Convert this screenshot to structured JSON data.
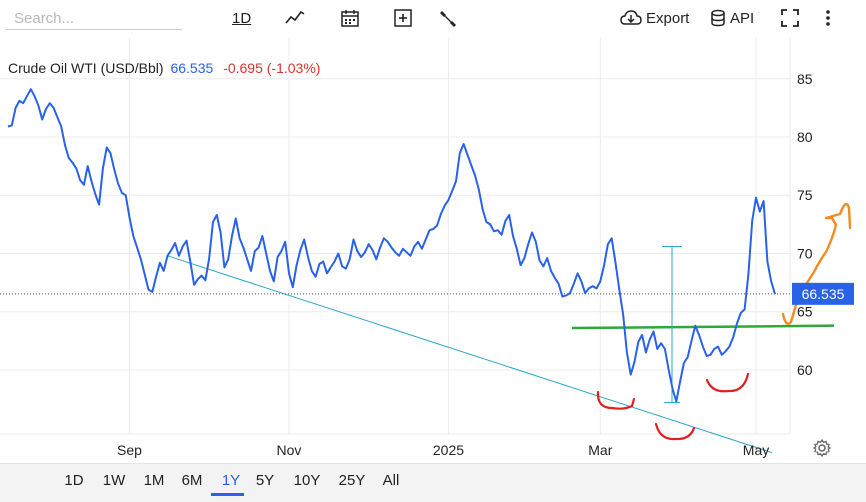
{
  "toolbar": {
    "search_placeholder": "Search...",
    "interval_label": "1D",
    "line_icon": "line-chart-icon",
    "calendar_icon": "calendar-icon",
    "add_icon": "plus-box-icon",
    "indicator_icon": "wrench-icon",
    "export_label": "Export",
    "api_label": "API",
    "fullscreen_icon": "expand-icon",
    "more_icon": "more-vertical-icon"
  },
  "header": {
    "symbol": "Crude Oil WTI (USD/Bbl)",
    "price": "66.535",
    "change": "-0.695 (-1.03%)"
  },
  "chart_data": {
    "type": "line",
    "title": "Crude Oil WTI (USD/Bbl)",
    "xlabel": "",
    "ylabel": "",
    "ylim": [
      54.5,
      88.5
    ],
    "y_ticks": [
      60,
      65,
      70,
      75,
      80,
      85
    ],
    "x_ticks": [
      "Sep",
      "Nov",
      "2025",
      "Mar",
      "May"
    ],
    "x_tick_index": [
      32,
      74,
      116,
      156,
      197
    ],
    "last_value": 66.535,
    "last_label": "66.535",
    "grid": true,
    "series": [
      {
        "color": "#2962e8",
        "values": [
          80.9,
          81.0,
          82.5,
          83.1,
          82.9,
          83.5,
          84.1,
          83.5,
          82.7,
          81.5,
          82.4,
          82.9,
          82.5,
          81.7,
          80.9,
          79.3,
          78.2,
          77.8,
          77.3,
          76.3,
          75.9,
          77.5,
          76.2,
          75.1,
          74.2,
          77.3,
          79.1,
          78.6,
          77.2,
          76.0,
          75.2,
          75.0,
          73.1,
          71.5,
          70.5,
          69.5,
          68.2,
          66.9,
          66.7,
          68.0,
          69.2,
          68.5,
          69.8,
          70.3,
          70.9,
          69.8,
          70.6,
          71.1,
          69.3,
          67.3,
          67.8,
          68.1,
          67.7,
          69.6,
          72.7,
          73.3,
          71.8,
          68.8,
          69.5,
          71.5,
          73.0,
          71.3,
          70.5,
          69.5,
          68.5,
          70.2,
          70.5,
          71.5,
          70.0,
          68.5,
          67.6,
          69.7,
          70.2,
          71.0,
          68.3,
          67.1,
          69.0,
          70.3,
          71.2,
          69.7,
          68.5,
          68.0,
          69.1,
          69.3,
          68.3,
          68.8,
          69.3,
          70.0,
          68.9,
          68.7,
          69.5,
          71.2,
          70.2,
          69.7,
          70.1,
          70.8,
          70.3,
          69.5,
          70.5,
          71.3,
          71.0,
          70.5,
          70.1,
          69.8,
          70.4,
          70.1,
          69.8,
          70.6,
          71.0,
          70.4,
          71.2,
          72.0,
          72.1,
          72.4,
          73.4,
          74.1,
          74.6,
          75.4,
          76.2,
          78.6,
          79.4,
          78.5,
          77.6,
          76.7,
          75.5,
          73.8,
          72.7,
          72.5,
          71.9,
          72.0,
          71.6,
          72.8,
          73.3,
          71.5,
          70.4,
          69.0,
          69.6,
          70.8,
          71.8,
          71.0,
          69.4,
          68.9,
          69.6,
          68.5,
          67.9,
          67.4,
          66.3,
          66.4,
          66.6,
          67.4,
          68.3,
          67.6,
          66.6,
          67.0,
          67.2,
          67.0,
          67.6,
          69.0,
          70.8,
          71.3,
          69.2,
          66.9,
          64.8,
          61.5,
          59.6,
          60.7,
          62.4,
          63.0,
          61.5,
          62.6,
          63.3,
          61.8,
          62.3,
          61.8,
          60.0,
          58.4,
          57.3,
          59.0,
          60.6,
          61.1,
          62.5,
          63.8,
          63.0,
          62.0,
          61.2,
          61.3,
          61.8,
          62.0,
          61.3,
          61.6,
          62.0,
          62.8,
          64.0,
          64.9,
          65.2,
          68.2,
          72.8,
          74.8,
          73.6,
          74.5,
          69.3,
          67.6,
          66.5
        ]
      }
    ],
    "annotations": [
      {
        "kind": "trendline",
        "color": "#29a6c9"
      },
      {
        "kind": "horizontal-line",
        "color": "#2ea836"
      },
      {
        "kind": "range-marker",
        "color": "#29a6c9"
      },
      {
        "kind": "freehand",
        "color": "#e02020"
      },
      {
        "kind": "freehand",
        "color": "#f28b20"
      }
    ]
  },
  "range_bar": {
    "buttons": [
      "1D",
      "1W",
      "1M",
      "6M",
      "1Y",
      "5Y",
      "10Y",
      "25Y",
      "All"
    ],
    "active": "1Y",
    "settings_icon": "gear-icon"
  }
}
